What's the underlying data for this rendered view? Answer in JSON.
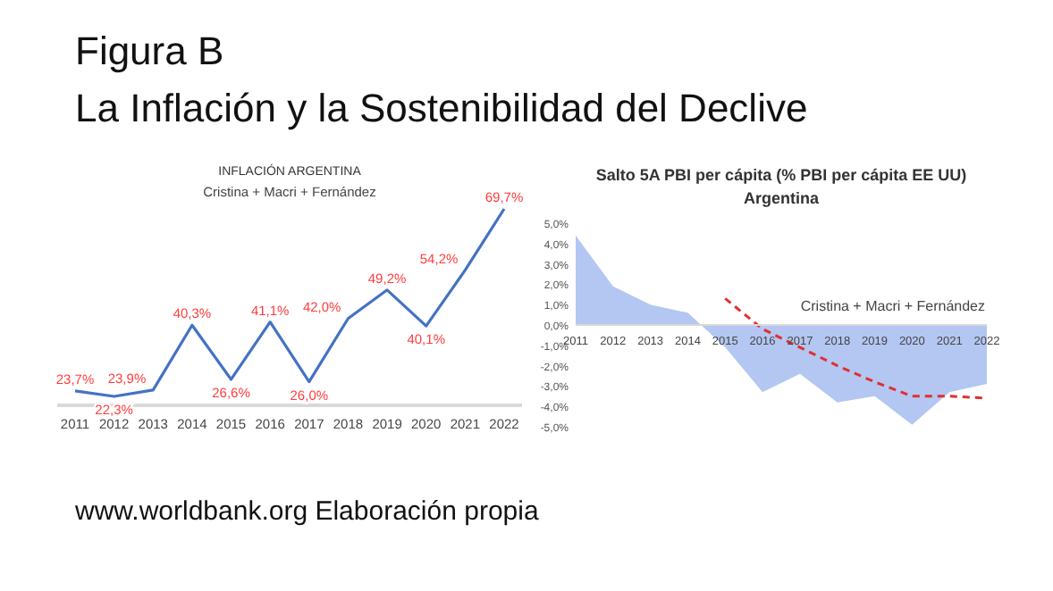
{
  "chart_data": [
    {
      "type": "line",
      "title": "INFLACIÓN ARGENTINA",
      "subtitle": "Cristina + Macri + Fernández",
      "annotations": [
        "Figura B",
        "La Inflación y la Sostenibilidad del Declive",
        "www.worldbank.org Elaboración propia"
      ],
      "categories": [
        "2011",
        "2012",
        "2013",
        "2014",
        "2015",
        "2016",
        "2017",
        "2018",
        "2019",
        "2020",
        "2021",
        "2022"
      ],
      "series": [
        {
          "color": "#4472c4",
          "values": [
            23.7,
            22.3,
            23.9,
            40.3,
            26.6,
            41.1,
            26.0,
            42.0,
            49.2,
            40.1,
            54.2,
            69.7
          ],
          "value_labels": [
            "23,7%",
            "22,3%",
            "23,9%",
            "40,3%",
            "26,6%",
            "41,1%",
            "26,0%",
            "42,0%",
            "49,2%",
            "40,1%",
            "54,2%",
            "69,7%"
          ]
        }
      ],
      "tick_labels": "x",
      "marker": "none",
      "line_style": "solid"
    },
    {
      "type": "area",
      "title": "Salto 5A PBI per cápita (% PBI per cápita EE UU)",
      "subtitle": "Argentina",
      "annotations": [
        "Cristina + Macri + Fernández"
      ],
      "categories": [
        "2011",
        "2012",
        "2013",
        "2014",
        "2015",
        "2016",
        "2017",
        "2018",
        "2019",
        "2020",
        "2021",
        "2022"
      ],
      "series": [
        {
          "type": "area",
          "color": "#b4c7f2",
          "values": [
            4.4,
            1.9,
            1.0,
            0.6,
            -1.1,
            -3.3,
            -2.4,
            -3.8,
            -3.5,
            -4.9,
            -3.3,
            -2.9
          ]
        },
        {
          "type": "line",
          "color": "#e03030",
          "line_style": "dashed",
          "values": [
            null,
            null,
            null,
            null,
            1.3,
            -0.2,
            -1.1,
            -2.0,
            -2.8,
            -3.5,
            -3.5,
            -3.6
          ]
        }
      ],
      "ylim": [
        -5,
        5
      ],
      "yticks": [
        {
          "value": 5,
          "label": "5,0%"
        },
        {
          "value": 4,
          "label": "4,0%"
        },
        {
          "value": 3,
          "label": "3,0%"
        },
        {
          "value": 2,
          "label": "2,0%"
        },
        {
          "value": 1,
          "label": "1,0%"
        },
        {
          "value": 0,
          "label": "0,0%"
        },
        {
          "value": -1,
          "label": "-1,0%"
        },
        {
          "value": -2,
          "label": "-2,0%"
        },
        {
          "value": -3,
          "label": "-3,0%"
        },
        {
          "value": -4,
          "label": "-4,0%"
        },
        {
          "value": -5,
          "label": "-5,0%"
        }
      ]
    }
  ]
}
